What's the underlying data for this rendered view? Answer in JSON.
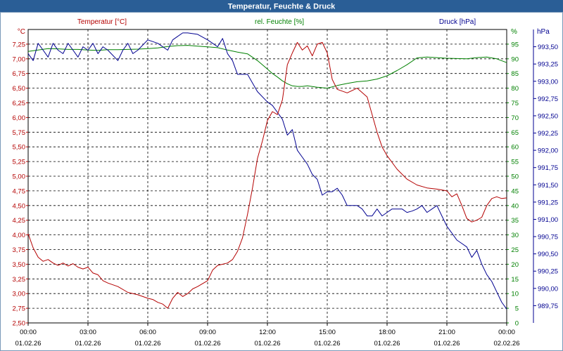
{
  "chart_data": {
    "type": "line",
    "title": "Temperatur, Feuchte & Druck",
    "colors": {
      "title_bar": "#2a5e96",
      "title_text": "#ffffff",
      "temperature": "#b40000",
      "humidity": "#008000",
      "pressure": "#000090",
      "grid": "#000000",
      "frame": "#7a99b9"
    },
    "series_labels": {
      "temperature": "Temperatur [°C]",
      "humidity": "rel. Feuchte [%]",
      "pressure": "Druck [hPa]"
    },
    "axis_units": {
      "left": "°C",
      "right1": "%",
      "right2": "hPa"
    },
    "x_ticks": [
      {
        "time": "00:00",
        "date": "01.02.26"
      },
      {
        "time": "03:00",
        "date": "01.02.26"
      },
      {
        "time": "06:00",
        "date": "01.02.26"
      },
      {
        "time": "09:00",
        "date": "01.02.26"
      },
      {
        "time": "12:00",
        "date": "01.02.26"
      },
      {
        "time": "15:00",
        "date": "01.02.26"
      },
      {
        "time": "18:00",
        "date": "01.02.26"
      },
      {
        "time": "21:00",
        "date": "01.02.26"
      },
      {
        "time": "00:00",
        "date": "02.02.26"
      }
    ],
    "x_range_hours": [
      0,
      24
    ],
    "y_temperature": {
      "range": [
        2.5,
        7.5
      ],
      "ticks": [
        "7,25",
        "7,00",
        "6,75",
        "6,50",
        "6,25",
        "6,00",
        "5,75",
        "5,50",
        "5,25",
        "5,00",
        "4,75",
        "4,50",
        "4,25",
        "4,00",
        "3,75",
        "3,50",
        "3,25",
        "3,00",
        "2,75",
        "2,50"
      ]
    },
    "y_humidity": {
      "range": [
        0,
        100
      ],
      "ticks": [
        "95",
        "90",
        "85",
        "80",
        "75",
        "70",
        "65",
        "60",
        "55",
        "50",
        "45",
        "40",
        "35",
        "30",
        "25",
        "20",
        "15",
        "10",
        "5",
        "0"
      ]
    },
    "y_pressure": {
      "range": [
        989.5,
        993.75
      ],
      "ticks": [
        "993,50",
        "993,25",
        "993,00",
        "992,75",
        "992,50",
        "992,25",
        "992,00",
        "991,75",
        "991,50",
        "991,25",
        "991,00",
        "990,75",
        "990,50",
        "990,25",
        "990,00",
        "989,75"
      ]
    },
    "series": [
      {
        "name": "Temperatur",
        "unit": "°C",
        "axis": "temperature",
        "x": [
          0,
          0.25,
          0.5,
          0.75,
          1.0,
          1.25,
          1.5,
          1.75,
          2.0,
          2.25,
          2.5,
          2.75,
          3.0,
          3.25,
          3.5,
          3.75,
          4.0,
          4.5,
          5.0,
          5.5,
          6.0,
          6.25,
          6.5,
          6.75,
          7.0,
          7.25,
          7.5,
          7.75,
          8.0,
          8.25,
          8.5,
          9.0,
          9.25,
          9.5,
          9.75,
          10.0,
          10.25,
          10.5,
          10.75,
          11.0,
          11.25,
          11.5,
          11.75,
          12.0,
          12.25,
          12.5,
          12.75,
          13.0,
          13.25,
          13.5,
          13.75,
          14.0,
          14.25,
          14.5,
          14.75,
          15.0,
          15.25,
          15.5,
          15.75,
          16.0,
          16.5,
          17.0,
          17.5,
          17.75,
          18.0,
          18.5,
          19.0,
          19.5,
          20.0,
          20.5,
          21.0,
          21.25,
          21.5,
          21.75,
          22.0,
          22.25,
          22.5,
          22.75,
          23.0,
          23.25,
          23.5,
          23.75,
          24.0
        ],
        "values": [
          4.02,
          3.78,
          3.62,
          3.55,
          3.58,
          3.52,
          3.48,
          3.52,
          3.47,
          3.51,
          3.45,
          3.42,
          3.45,
          3.35,
          3.32,
          3.22,
          3.18,
          3.12,
          3.02,
          2.98,
          2.92,
          2.9,
          2.85,
          2.82,
          2.75,
          2.92,
          3.02,
          2.95,
          3.0,
          3.08,
          3.12,
          3.22,
          3.4,
          3.48,
          3.5,
          3.52,
          3.58,
          3.72,
          3.95,
          4.35,
          4.8,
          5.3,
          5.6,
          5.95,
          6.1,
          6.05,
          6.3,
          6.9,
          7.1,
          7.28,
          7.15,
          7.22,
          7.05,
          7.25,
          7.28,
          7.1,
          6.65,
          6.48,
          6.45,
          6.42,
          6.5,
          6.35,
          5.75,
          5.5,
          5.35,
          5.12,
          4.95,
          4.85,
          4.8,
          4.78,
          4.75,
          4.65,
          4.7,
          4.5,
          4.28,
          4.22,
          4.25,
          4.3,
          4.5,
          4.62,
          4.65,
          4.62,
          4.63
        ]
      },
      {
        "name": "rel. Feuchte",
        "unit": "%",
        "axis": "humidity",
        "x": [
          0,
          0.5,
          1.0,
          1.5,
          2.0,
          2.5,
          3.0,
          3.5,
          4.0,
          4.5,
          5.0,
          5.5,
          6.0,
          6.5,
          7.0,
          7.5,
          8.0,
          8.5,
          9.0,
          9.5,
          10.0,
          10.5,
          11.0,
          11.5,
          12.0,
          12.25,
          12.5,
          12.75,
          13.0,
          13.25,
          13.5,
          13.75,
          14.0,
          14.5,
          15.0,
          15.5,
          16.0,
          16.5,
          17.0,
          17.5,
          18.0,
          18.5,
          19.0,
          19.5,
          20.0,
          20.5,
          21.0,
          21.5,
          22.0,
          22.5,
          23.0,
          23.5,
          24.0
        ],
        "values": [
          92.5,
          93,
          93.5,
          93.4,
          93.2,
          93.2,
          93,
          92.9,
          93.1,
          93.1,
          93.2,
          93.3,
          93.5,
          93.7,
          94.2,
          94.5,
          94.6,
          94.3,
          94.1,
          93.8,
          93,
          92.3,
          91.7,
          89.4,
          86.5,
          85,
          83.8,
          82.5,
          81.5,
          80.8,
          80.6,
          80.6,
          80.8,
          80.3,
          80,
          80.9,
          81.6,
          82.2,
          82.5,
          83.1,
          84.2,
          86,
          88,
          90.3,
          90.6,
          90.4,
          90.2,
          90.1,
          90,
          90.4,
          90.6,
          90,
          88.7
        ]
      },
      {
        "name": "Druck",
        "unit": "hPa",
        "axis": "pressure",
        "x": [
          0,
          0.25,
          0.5,
          0.75,
          1.0,
          1.25,
          1.5,
          1.75,
          2.0,
          2.25,
          2.5,
          2.75,
          3.0,
          3.25,
          3.5,
          3.75,
          4.0,
          4.5,
          4.75,
          5.0,
          5.25,
          5.5,
          6.0,
          6.5,
          7.0,
          7.25,
          7.5,
          7.75,
          8.0,
          8.5,
          9.0,
          9.25,
          9.5,
          9.75,
          10.0,
          10.25,
          10.5,
          11.0,
          11.5,
          12.0,
          12.25,
          12.5,
          12.75,
          13.0,
          13.25,
          13.5,
          13.75,
          14.0,
          14.25,
          14.5,
          14.75,
          15.0,
          15.25,
          15.5,
          15.75,
          16.0,
          16.25,
          16.5,
          16.75,
          17.0,
          17.25,
          17.5,
          17.75,
          18.0,
          18.25,
          18.5,
          18.75,
          19.0,
          19.25,
          19.5,
          19.75,
          20.0,
          20.25,
          20.5,
          20.75,
          21.0,
          21.25,
          21.5,
          21.75,
          22.0,
          22.25,
          22.5,
          22.75,
          23.0,
          23.25,
          23.5,
          23.75,
          24.0
        ],
        "values": [
          993.4,
          993.3,
          993.55,
          993.45,
          993.35,
          993.55,
          993.45,
          993.4,
          993.55,
          993.45,
          993.35,
          993.5,
          993.45,
          993.55,
          993.4,
          993.5,
          993.45,
          993.3,
          993.45,
          993.55,
          993.4,
          993.45,
          993.6,
          993.55,
          993.45,
          993.6,
          993.65,
          993.7,
          993.7,
          993.68,
          993.6,
          993.55,
          993.5,
          993.62,
          993.4,
          993.3,
          993.1,
          993.1,
          992.85,
          992.7,
          992.65,
          992.55,
          992.45,
          992.22,
          992.3,
          992.0,
          991.9,
          991.8,
          991.65,
          991.58,
          991.35,
          991.4,
          991.4,
          991.45,
          991.35,
          991.2,
          991.2,
          991.2,
          991.15,
          991.05,
          991.05,
          991.15,
          991.05,
          991.1,
          991.15,
          991.15,
          991.15,
          991.1,
          991.12,
          991.15,
          991.2,
          991.1,
          991.15,
          991.2,
          991.05,
          990.9,
          990.8,
          990.7,
          990.65,
          990.6,
          990.45,
          990.55,
          990.35,
          990.2,
          990.1,
          989.95,
          989.8,
          989.7
        ]
      }
    ]
  }
}
